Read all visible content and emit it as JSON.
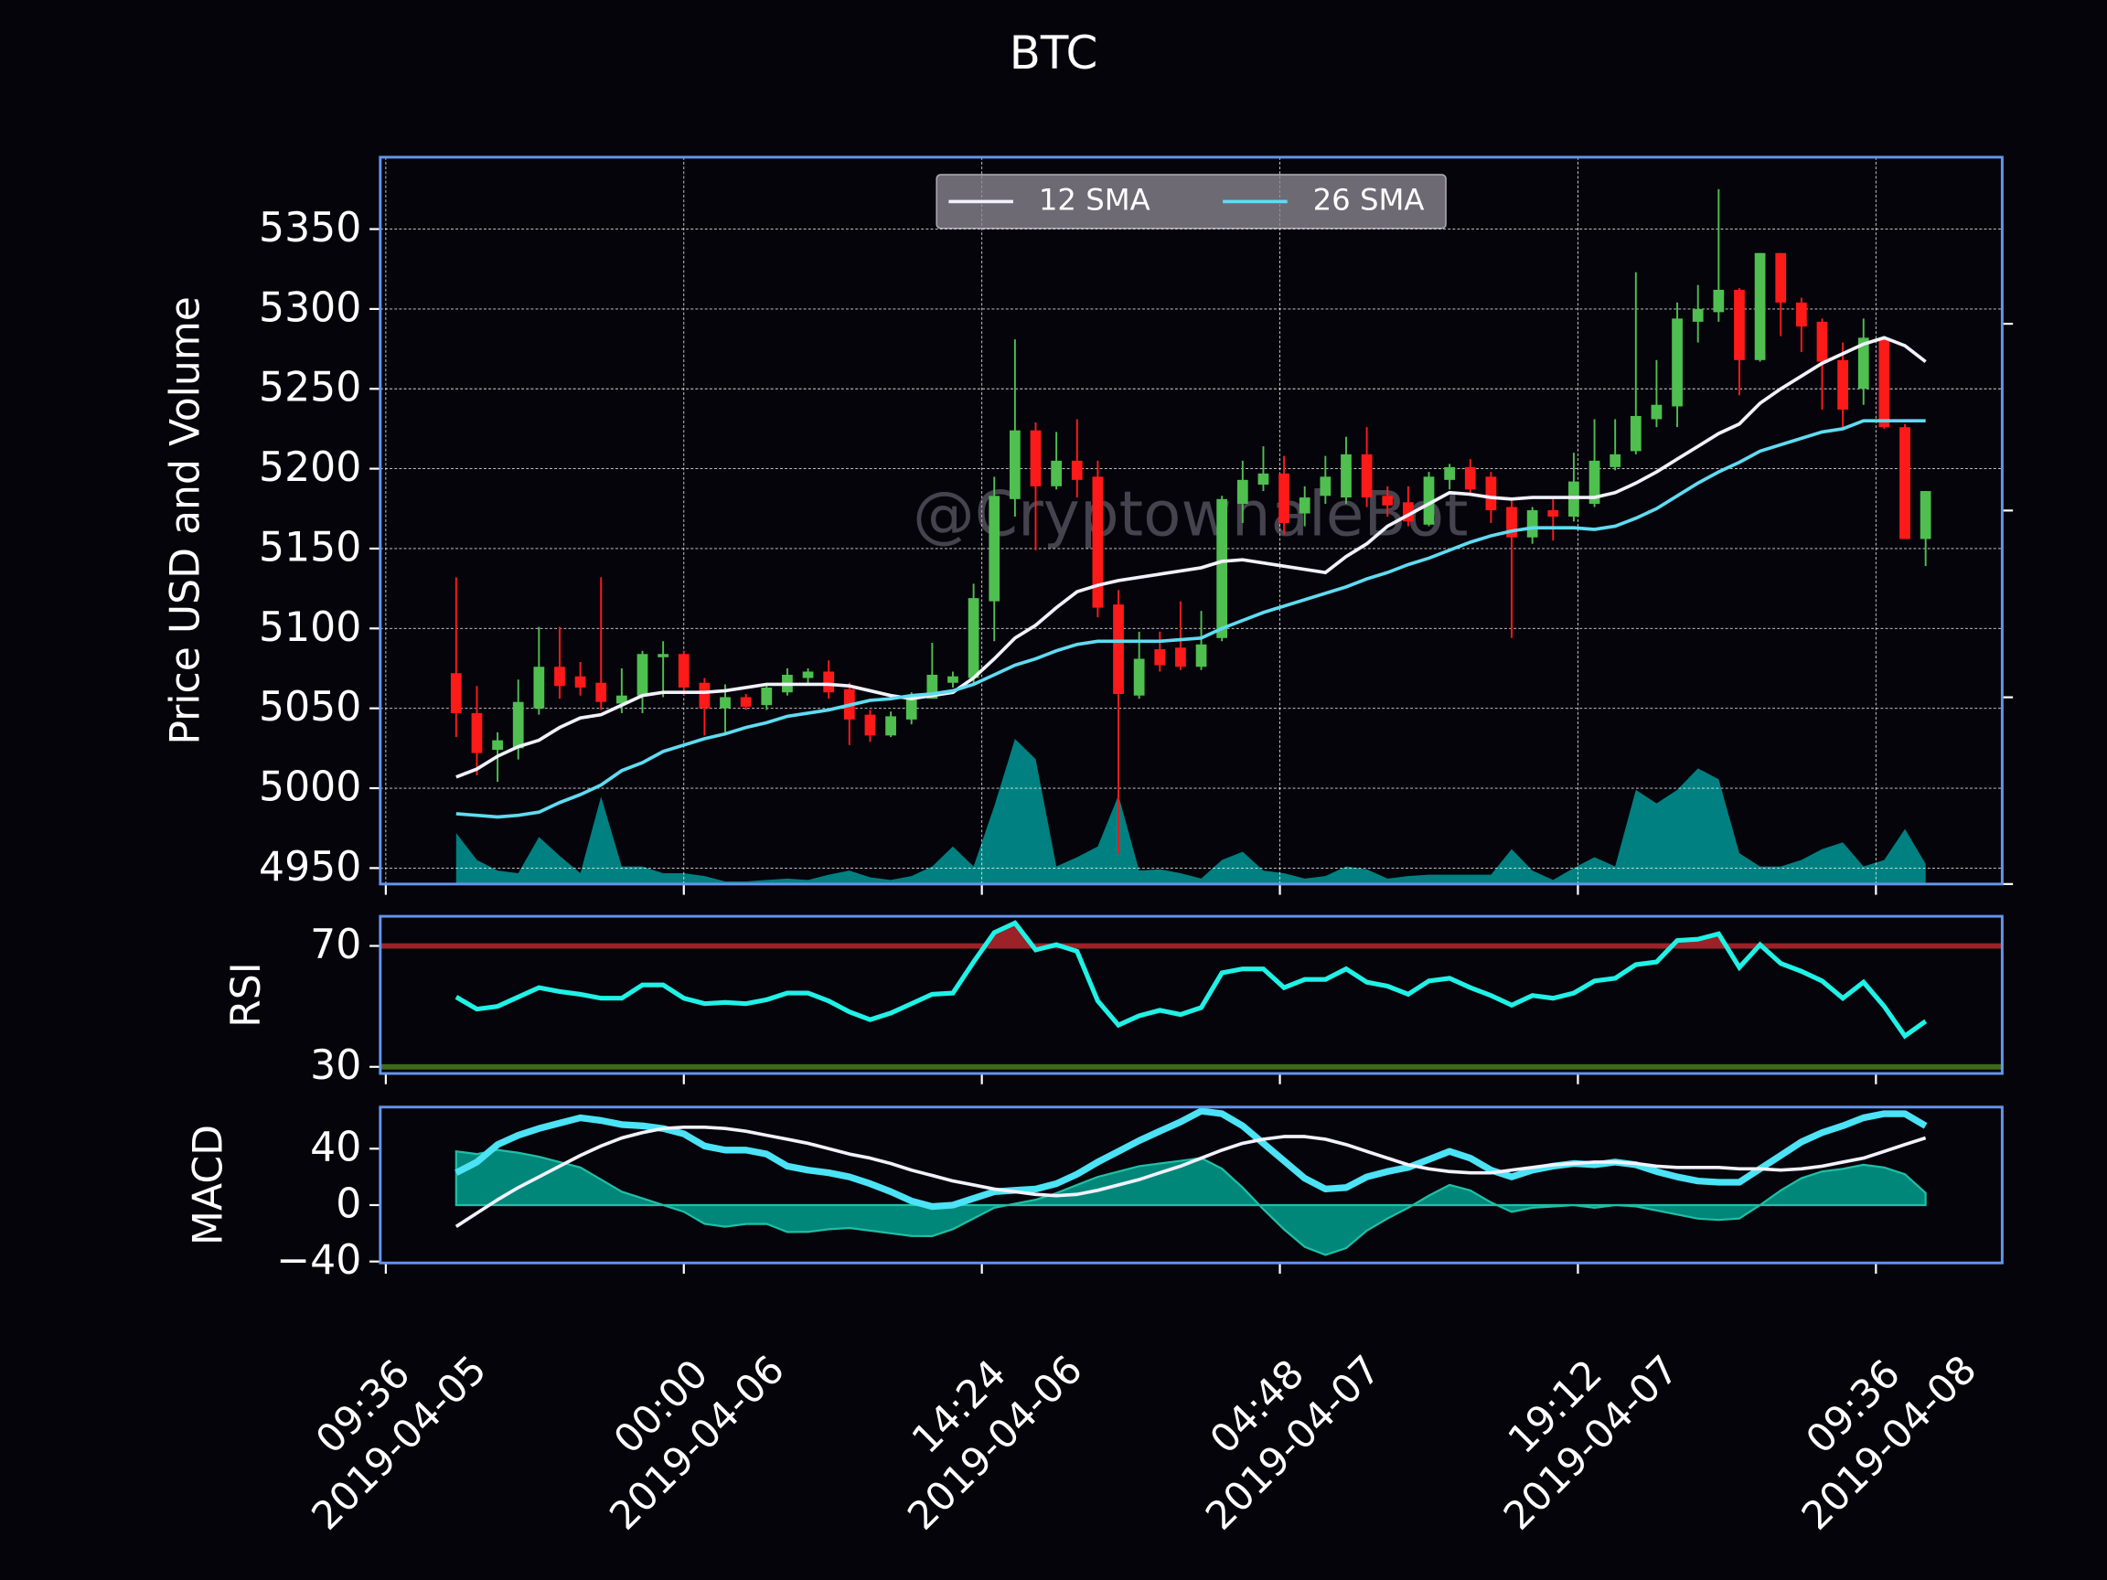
{
  "chart_data": [
    {
      "type": "candlestick",
      "title": "BTC",
      "ylabel": "Price USD and Volume",
      "watermark": "@CryptowhaleBot",
      "x": [
        "2019-04-05 13:00",
        "2019-04-05 14:00",
        "2019-04-05 15:00",
        "2019-04-05 16:00",
        "2019-04-05 17:00",
        "2019-04-05 18:00",
        "2019-04-05 19:00",
        "2019-04-05 20:00",
        "2019-04-05 21:00",
        "2019-04-05 22:00",
        "2019-04-05 23:00",
        "2019-04-06 00:00",
        "2019-04-06 01:00",
        "2019-04-06 02:00",
        "2019-04-06 03:00",
        "2019-04-06 04:00",
        "2019-04-06 05:00",
        "2019-04-06 06:00",
        "2019-04-06 07:00",
        "2019-04-06 08:00",
        "2019-04-06 09:00",
        "2019-04-06 10:00",
        "2019-04-06 11:00",
        "2019-04-06 12:00",
        "2019-04-06 13:00",
        "2019-04-06 14:00",
        "2019-04-06 15:00",
        "2019-04-06 16:00",
        "2019-04-06 17:00",
        "2019-04-06 18:00",
        "2019-04-06 19:00",
        "2019-04-06 20:00",
        "2019-04-06 21:00",
        "2019-04-06 22:00",
        "2019-04-06 23:00",
        "2019-04-07 00:00",
        "2019-04-07 01:00",
        "2019-04-07 02:00",
        "2019-04-07 03:00",
        "2019-04-07 04:00",
        "2019-04-07 05:00",
        "2019-04-07 06:00",
        "2019-04-07 07:00",
        "2019-04-07 08:00",
        "2019-04-07 09:00",
        "2019-04-07 10:00",
        "2019-04-07 11:00",
        "2019-04-07 12:00",
        "2019-04-07 13:00",
        "2019-04-07 14:00",
        "2019-04-07 15:00",
        "2019-04-07 16:00",
        "2019-04-07 17:00",
        "2019-04-07 18:00",
        "2019-04-07 19:00",
        "2019-04-07 20:00",
        "2019-04-07 21:00",
        "2019-04-07 22:00",
        "2019-04-07 23:00",
        "2019-04-08 00:00",
        "2019-04-08 01:00",
        "2019-04-08 02:00",
        "2019-04-08 03:00",
        "2019-04-08 04:00",
        "2019-04-08 05:00",
        "2019-04-08 06:00",
        "2019-04-08 07:00",
        "2019-04-08 08:00",
        "2019-04-08 09:00",
        "2019-04-08 10:00",
        "2019-04-08 11:00",
        "2019-04-08 12:00"
      ],
      "open": [
        5072,
        5047,
        5024,
        5025,
        5050,
        5076,
        5070,
        5066,
        5053,
        5058,
        5082,
        5084,
        5066,
        5050,
        5057,
        5052,
        5060,
        5069,
        5073,
        5062,
        5046,
        5033,
        5043,
        5056,
        5066,
        5069,
        5117,
        5181,
        5224,
        5189,
        5205,
        5195,
        5115,
        5058,
        5087,
        5088,
        5076,
        5094,
        5178,
        5190,
        5197,
        5172,
        5183,
        5182,
        5209,
        5183,
        5179,
        5165,
        5193,
        5201,
        5195,
        5176,
        5157,
        5174,
        5170,
        5178,
        5201,
        5211,
        5231,
        5239,
        5292,
        5298,
        5312,
        5268,
        5335,
        5304,
        5292,
        5268,
        5250,
        5281,
        5226,
        5156
      ],
      "high": [
        5132,
        5064,
        5035,
        5068,
        5101,
        5101,
        5079,
        5132,
        5075,
        5086,
        5092,
        5086,
        5069,
        5065,
        5059,
        5065,
        5075,
        5075,
        5080,
        5066,
        5049,
        5048,
        5060,
        5091,
        5073,
        5128,
        5195,
        5281,
        5229,
        5223,
        5231,
        5205,
        5124,
        5098,
        5098,
        5117,
        5111,
        5183,
        5205,
        5214,
        5208,
        5189,
        5208,
        5220,
        5226,
        5189,
        5189,
        5198,
        5203,
        5206,
        5198,
        5182,
        5176,
        5182,
        5210,
        5231,
        5231,
        5323,
        5268,
        5304,
        5315,
        5375,
        5313,
        5335,
        5335,
        5307,
        5294,
        5279,
        5294,
        5281,
        5228,
        5186
      ],
      "low": [
        5032,
        5008,
        5004,
        5018,
        5046,
        5056,
        5058,
        5049,
        5047,
        5047,
        5057,
        5058,
        5033,
        5035,
        5049,
        5049,
        5058,
        5065,
        5056,
        5027,
        5029,
        5032,
        5040,
        5056,
        5063,
        5065,
        5092,
        5170,
        5149,
        5187,
        5182,
        5107,
        4959,
        5056,
        5073,
        5074,
        5074,
        5092,
        5166,
        5186,
        5159,
        5164,
        5178,
        5178,
        5176,
        5170,
        5164,
        5164,
        5187,
        5184,
        5166,
        5094,
        5153,
        5155,
        5167,
        5176,
        5199,
        5209,
        5226,
        5226,
        5279,
        5292,
        5246,
        5267,
        5283,
        5273,
        5237,
        5226,
        5240,
        5225,
        5156,
        5139
      ],
      "close": [
        5047,
        5022,
        5030,
        5054,
        5076,
        5064,
        5063,
        5054,
        5058,
        5084,
        5084,
        5063,
        5050,
        5057,
        5051,
        5063,
        5071,
        5073,
        5060,
        5043,
        5033,
        5045,
        5058,
        5071,
        5070,
        5119,
        5183,
        5224,
        5189,
        5205,
        5193,
        5113,
        5059,
        5081,
        5077,
        5076,
        5090,
        5181,
        5193,
        5197,
        5166,
        5182,
        5195,
        5209,
        5182,
        5177,
        5167,
        5195,
        5201,
        5187,
        5174,
        5157,
        5174,
        5170,
        5192,
        5205,
        5209,
        5233,
        5240,
        5294,
        5300,
        5312,
        5268,
        5335,
        5304,
        5289,
        5267,
        5237,
        5282,
        5226,
        5156,
        5186
      ],
      "up_color": "#4fbf4f",
      "down_color": "#ff1a1a",
      "series": [
        {
          "name": "12 SMA",
          "color": "#f2f2ff",
          "values": [
            5007,
            5012,
            5020,
            5026,
            5030,
            5038,
            5044,
            5046,
            5052,
            5058,
            5060,
            5060,
            5060,
            5061,
            5063,
            5065,
            5065,
            5065,
            5065,
            5064,
            5061,
            5058,
            5056,
            5058,
            5060,
            5069,
            5081,
            5094,
            5102,
            5113,
            5123,
            5127,
            5130,
            5132,
            5134,
            5136,
            5138,
            5142,
            5143,
            5141,
            5139,
            5137,
            5135,
            5145,
            5153,
            5164,
            5171,
            5178,
            5185,
            5184,
            5182,
            5181,
            5182,
            5182,
            5182,
            5182,
            5185,
            5191,
            5198,
            5206,
            5214,
            5222,
            5228,
            5241,
            5250,
            5258,
            5266,
            5272,
            5278,
            5282,
            5277,
            5267
          ]
        },
        {
          "name": "26 SMA",
          "color": "#5fdcf2",
          "values": [
            4984,
            4983,
            4982,
            4983,
            4985,
            4991,
            4996,
            5002,
            5011,
            5016,
            5023,
            5027,
            5031,
            5034,
            5038,
            5041,
            5045,
            5047,
            5049,
            5052,
            5055,
            5056,
            5058,
            5059,
            5061,
            5065,
            5071,
            5077,
            5081,
            5086,
            5090,
            5092,
            5092,
            5092,
            5092,
            5093,
            5094,
            5100,
            5105,
            5110,
            5114,
            5118,
            5122,
            5126,
            5131,
            5135,
            5140,
            5144,
            5149,
            5154,
            5158,
            5161,
            5163,
            5163,
            5163,
            5162,
            5164,
            5169,
            5175,
            5183,
            5191,
            5198,
            5204,
            5211,
            5215,
            5219,
            5223,
            5225,
            5230,
            5230,
            5230,
            5230
          ]
        }
      ],
      "volume": {
        "axis": "y2",
        "color": "#008080",
        "values": [
          273,
          129,
          72,
          58,
          252,
          151,
          58,
          468,
          94,
          94,
          58,
          58,
          43,
          14,
          14,
          22,
          29,
          22,
          50,
          72,
          36,
          22,
          43,
          94,
          201,
          94,
          417,
          777,
          669,
          94,
          144,
          201,
          475,
          72,
          79,
          58,
          29,
          129,
          173,
          72,
          58,
          29,
          43,
          94,
          79,
          29,
          43,
          50,
          50,
          50,
          50,
          187,
          72,
          22,
          86,
          144,
          94,
          504,
          432,
          504,
          619,
          561,
          165,
          94,
          94,
          129,
          187,
          223,
          94,
          129,
          295,
          108
        ]
      },
      "xlim": [
        "2019-04-05 09:20",
        "2019-04-08 15:42"
      ],
      "xticks": [
        {
          "value": "2019-04-05 09:36",
          "label": "09:36\n2019-04-05"
        },
        {
          "value": "2019-04-06 00:00",
          "label": "00:00\n2019-04-06"
        },
        {
          "value": "2019-04-06 14:24",
          "label": "14:24\n2019-04-06"
        },
        {
          "value": "2019-04-07 04:48",
          "label": "04:48\n2019-04-07"
        },
        {
          "value": "2019-04-07 19:12",
          "label": "19:12\n2019-04-07"
        },
        {
          "value": "2019-04-08 09:36",
          "label": "09:36\n2019-04-08"
        }
      ],
      "ylim": [
        4940,
        5395
      ],
      "yticks": [
        4950,
        5000,
        5050,
        5100,
        5150,
        5200,
        5250,
        5300,
        5350
      ],
      "y2lim": [
        0,
        3892
      ],
      "y2ticks": [
        0,
        1000,
        2000,
        3000
      ],
      "grid": true,
      "legend": "upper center"
    },
    {
      "type": "line",
      "ylabel": "RSI",
      "color": "#1ff2e6",
      "values": [
        53.1,
        49.1,
        50,
        53.1,
        56.2,
        54.9,
        54,
        52.7,
        52.7,
        57.1,
        57.1,
        52.7,
        50.9,
        51.3,
        50.9,
        52.2,
        54.4,
        54.4,
        51.8,
        48.2,
        45.6,
        47.8,
        50.9,
        54,
        54.4,
        64.7,
        74.4,
        77.6,
        68.7,
        70.4,
        68.2,
        51.8,
        43.8,
        46.9,
        48.7,
        47.3,
        49.6,
        61.1,
        62.4,
        62.4,
        56.2,
        58.9,
        58.9,
        62.4,
        58,
        56.7,
        54,
        58.4,
        59.3,
        56.2,
        53.6,
        50.4,
        53.6,
        52.7,
        54.4,
        58.4,
        59.3,
        63.8,
        64.7,
        71.8,
        72.2,
        74,
        62.9,
        70.4,
        64.2,
        61.6,
        58.4,
        52.7,
        58,
        50,
        40.2,
        45.1
      ],
      "levels": [
        {
          "value": 70,
          "color": "#9b2226",
          "fill": "above"
        },
        {
          "value": 30,
          "color": "#3d6b1c"
        }
      ],
      "ylim": [
        27.8,
        79.8
      ],
      "yticks": [
        30,
        70
      ]
    },
    {
      "type": "line",
      "ylabel": "MACD",
      "series": [
        {
          "color": "#4be3f5",
          "width": 5,
          "values": [
            22.9,
            30.5,
            42.9,
            49.5,
            54.3,
            58.1,
            61.9,
            60,
            57.1,
            56.2,
            54.3,
            50.5,
            41.9,
            39,
            39,
            36.2,
            27.6,
            24.8,
            22.9,
            20,
            15.2,
            9.5,
            2.9,
            -1,
            0,
            4.8,
            9.5,
            10.5,
            11.4,
            15.2,
            21.9,
            30.5,
            38.1,
            45.7,
            52.4,
            59,
            66.7,
            64.8,
            56.2,
            43.8,
            31.4,
            19,
            11.4,
            12.4,
            20,
            23.8,
            26.7,
            32.4,
            38.1,
            33.3,
            24.8,
            20,
            24.8,
            27.6,
            29.5,
            28.6,
            30.5,
            28.6,
            23.8,
            20,
            17.1,
            16.2,
            16.2,
            25.7,
            35.2,
            44.8,
            51.4,
            56.2,
            61.9,
            64.8,
            64.8,
            56.2
          ]
        },
        {
          "color": "#f2f2ff",
          "width": 2.5,
          "values": [
            -15.2,
            -5.7,
            3.8,
            12.4,
            20,
            27.6,
            35.2,
            41.9,
            47.6,
            51.4,
            54.3,
            55.2,
            55.2,
            54.3,
            52.4,
            49.5,
            46.7,
            43.8,
            40,
            36.2,
            33.3,
            29.5,
            24.8,
            21,
            17.1,
            14.3,
            11.4,
            9.5,
            7.6,
            6.7,
            7.6,
            10.5,
            14.3,
            18.1,
            22.9,
            27.6,
            33.3,
            39,
            43.8,
            46.7,
            48.6,
            48.6,
            46.7,
            42.9,
            38.1,
            33.3,
            28.6,
            25.7,
            23.8,
            22.9,
            22.9,
            24.8,
            26.7,
            28.6,
            29.5,
            30.5,
            30.5,
            29.5,
            27.6,
            26.7,
            26.7,
            26.7,
            25.7,
            25.7,
            24.8,
            25.7,
            27.6,
            30.5,
            33.3,
            38.1,
            42.9,
            47.6
          ]
        }
      ],
      "histogram": {
        "color": "#00877a",
        "edge": "#1fbfa6",
        "values": [
          38.1,
          36.2,
          39.1,
          37.1,
          34.3,
          30.5,
          26.7,
          18.1,
          9.5,
          4.8,
          0,
          -4.7,
          -13.3,
          -15.3,
          -13.4,
          -13.3,
          -19.1,
          -19,
          -17.1,
          -16.2,
          -18.1,
          -20,
          -21.9,
          -22,
          -17.1,
          -9.5,
          -1.9,
          1,
          3.8,
          8.5,
          14.3,
          20,
          23.8,
          27.6,
          29.5,
          31.4,
          33.4,
          25.8,
          12.4,
          -2.9,
          -17.2,
          -29.6,
          -35.3,
          -30.5,
          -18.1,
          -9.5,
          -1.9,
          6.7,
          14.3,
          10.4,
          1.9,
          -4.8,
          -1.9,
          -1,
          0,
          -1.9,
          0,
          -0.9,
          -3.8,
          -6.7,
          -9.6,
          -10.5,
          -9.5,
          0,
          10.4,
          19.1,
          23.8,
          25.7,
          28.6,
          26.7,
          21.9,
          8.6
        ]
      },
      "ylim": [
        -41,
        69.5
      ],
      "yticks": [
        {
          "value": -40,
          "label": "−40"
        },
        0,
        40
      ]
    }
  ]
}
